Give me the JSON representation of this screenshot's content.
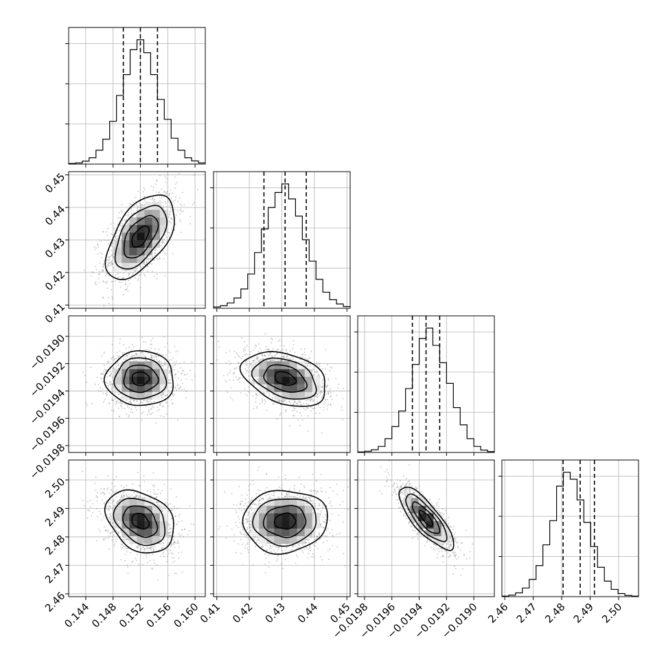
{
  "chart_data": {
    "type": "corner",
    "title": "",
    "grid": true,
    "parameters": [
      {
        "index": 0,
        "range": [
          0.1415,
          0.1615
        ],
        "ticks": [
          0.144,
          0.148,
          0.152,
          0.156,
          0.16
        ],
        "tick_labels": [
          "0.144",
          "0.148",
          "0.152",
          "0.156",
          "0.160"
        ],
        "median": 0.152,
        "quantiles": [
          0.1495,
          0.152,
          0.1545
        ],
        "sigma": 0.0025
      },
      {
        "index": 1,
        "range": [
          0.409,
          0.451
        ],
        "ticks": [
          0.41,
          0.42,
          0.43,
          0.44,
          0.45
        ],
        "tick_labels": [
          "0.41",
          "0.42",
          "0.43",
          "0.44",
          "0.45"
        ],
        "median": 0.431,
        "quantiles": [
          0.4245,
          0.431,
          0.4375
        ],
        "sigma": 0.0065
      },
      {
        "index": 2,
        "range": [
          -0.01985,
          -0.01885
        ],
        "ticks": [
          -0.0198,
          -0.0196,
          -0.0194,
          -0.0192,
          -0.019
        ],
        "tick_labels": [
          "−0.0198",
          "−0.0196",
          "−0.0194",
          "−0.0192",
          "−0.0190"
        ],
        "median": -0.01935,
        "quantiles": [
          -0.01945,
          -0.01935,
          -0.01925
        ],
        "sigma": 0.0001
      },
      {
        "index": 3,
        "range": [
          2.459,
          2.507
        ],
        "ticks": [
          2.46,
          2.47,
          2.48,
          2.49,
          2.5
        ],
        "tick_labels": [
          "2.46",
          "2.47",
          "2.48",
          "2.49",
          "2.50"
        ],
        "median": 2.4865,
        "quantiles": [
          2.4805,
          2.4865,
          2.4915
        ],
        "sigma": 0.0055
      }
    ],
    "histograms": [
      {
        "param": 0,
        "bin_start": 0.1415,
        "bin_width": 0.001,
        "counts": [
          0.3,
          0.6,
          1.5,
          3.2,
          7.0,
          12.5,
          21.5,
          34.5,
          45.0,
          57.5,
          62.5,
          56.0,
          45.0,
          32.5,
          22.5,
          13.0,
          7.0,
          3.2,
          1.6,
          0.6
        ]
      },
      {
        "param": 1,
        "bin_start": 0.409,
        "bin_width": 0.0021,
        "counts": [
          0.6,
          1.2,
          2.5,
          4.8,
          9.0,
          16.0,
          26.0,
          37.0,
          47.0,
          54.0,
          58.0,
          51.0,
          43.0,
          32.0,
          22.0,
          13.5,
          7.5,
          4.0,
          2.0,
          0.8
        ]
      },
      {
        "param": 2,
        "bin_start": -0.01985,
        "bin_width": 5e-05,
        "counts": [
          0.3,
          0.7,
          1.6,
          3.5,
          8.0,
          15.0,
          24.0,
          37.0,
          51.0,
          66.0,
          72.0,
          62.0,
          52.0,
          40.0,
          26.0,
          16.0,
          8.0,
          3.5,
          1.4,
          0.5
        ]
      },
      {
        "param": 3,
        "bin_start": 2.459,
        "bin_width": 0.0024,
        "counts": [
          0.3,
          0.9,
          2.2,
          5.0,
          10.0,
          18.0,
          30.0,
          44.0,
          64.0,
          72.0,
          68.0,
          56.0,
          43.0,
          29.0,
          17.0,
          9.0,
          4.2,
          1.8,
          0.7,
          0.3
        ]
      }
    ],
    "pairs": [
      {
        "x": 0,
        "y": 1,
        "correlation": 0.55,
        "center": [
          0.152,
          0.431
        ]
      },
      {
        "x": 0,
        "y": 2,
        "correlation": 0.0,
        "center": [
          0.152,
          -0.01931
        ]
      },
      {
        "x": 1,
        "y": 2,
        "correlation": -0.35,
        "center": [
          0.431,
          -0.01931
        ]
      },
      {
        "x": 0,
        "y": 3,
        "correlation": -0.3,
        "center": [
          0.152,
          2.4855
        ]
      },
      {
        "x": 1,
        "y": 3,
        "correlation": 0.05,
        "center": [
          0.431,
          2.4855
        ]
      },
      {
        "x": 2,
        "y": 3,
        "correlation": -0.8,
        "center": [
          -0.01935,
          2.4865
        ]
      }
    ],
    "contour_levels_sigma": [
      0.5,
      1.0,
      1.5,
      2.0
    ]
  }
}
